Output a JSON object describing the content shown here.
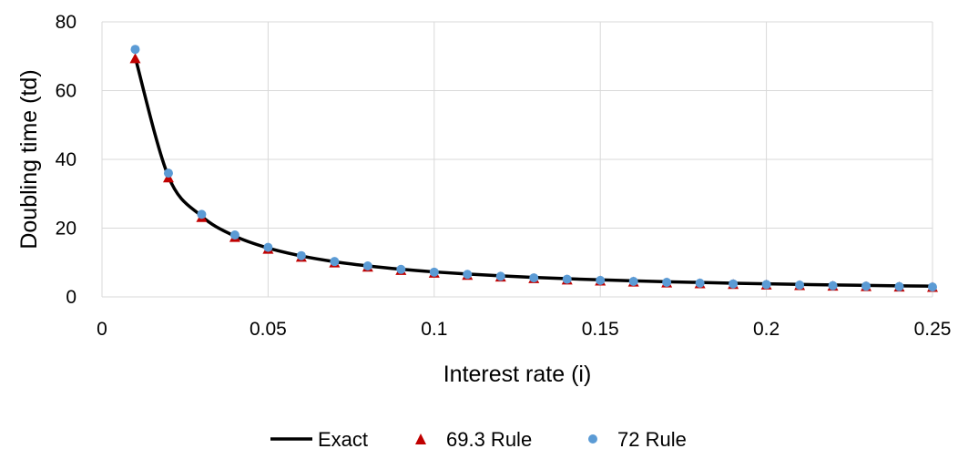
{
  "chart_data": {
    "type": "scatter",
    "title": "",
    "xlabel": "Interest rate (i)",
    "ylabel": "Doubling time (td)",
    "xlim": [
      0,
      0.25
    ],
    "ylim": [
      0,
      80
    ],
    "x_ticks": [
      0,
      0.05,
      0.1,
      0.15,
      0.2,
      0.25
    ],
    "x_tick_labels": [
      "0",
      "0.05",
      "0.1",
      "0.15",
      "0.2",
      "0.25"
    ],
    "y_ticks": [
      0,
      20,
      40,
      60,
      80
    ],
    "y_tick_labels": [
      "0",
      "20",
      "40",
      "60",
      "80"
    ],
    "grid": true,
    "legend_position": "bottom",
    "x": [
      0.01,
      0.02,
      0.03,
      0.04,
      0.05,
      0.06,
      0.07,
      0.08,
      0.09,
      0.1,
      0.11,
      0.12,
      0.13,
      0.14,
      0.15,
      0.16,
      0.17,
      0.18,
      0.19,
      0.2,
      0.21,
      0.22,
      0.23,
      0.24,
      0.25
    ],
    "series": [
      {
        "name": "Exact",
        "style": "line",
        "color": "#000000",
        "values": [
          69.66,
          35.0,
          23.45,
          17.67,
          14.21,
          11.9,
          10.24,
          9.01,
          8.04,
          7.27,
          6.64,
          6.12,
          5.67,
          5.29,
          4.96,
          4.67,
          4.41,
          4.19,
          3.98,
          3.8,
          3.63,
          3.48,
          3.35,
          3.22,
          3.11
        ]
      },
      {
        "name": "69.3 Rule",
        "style": "triangle",
        "color": "#c00000",
        "values": [
          69.3,
          34.65,
          23.1,
          17.33,
          13.86,
          11.55,
          9.9,
          8.66,
          7.7,
          6.93,
          6.3,
          5.78,
          5.33,
          4.95,
          4.62,
          4.33,
          4.08,
          3.85,
          3.65,
          3.47,
          3.3,
          3.15,
          3.01,
          2.89,
          2.77
        ]
      },
      {
        "name": "72 Rule",
        "style": "circle",
        "color": "#5b9bd5",
        "values": [
          72.0,
          36.0,
          24.0,
          18.0,
          14.4,
          12.0,
          10.29,
          9.0,
          8.0,
          7.2,
          6.55,
          6.0,
          5.54,
          5.14,
          4.8,
          4.5,
          4.24,
          4.0,
          3.79,
          3.6,
          3.43,
          3.27,
          3.13,
          3.0,
          2.88
        ]
      }
    ]
  }
}
